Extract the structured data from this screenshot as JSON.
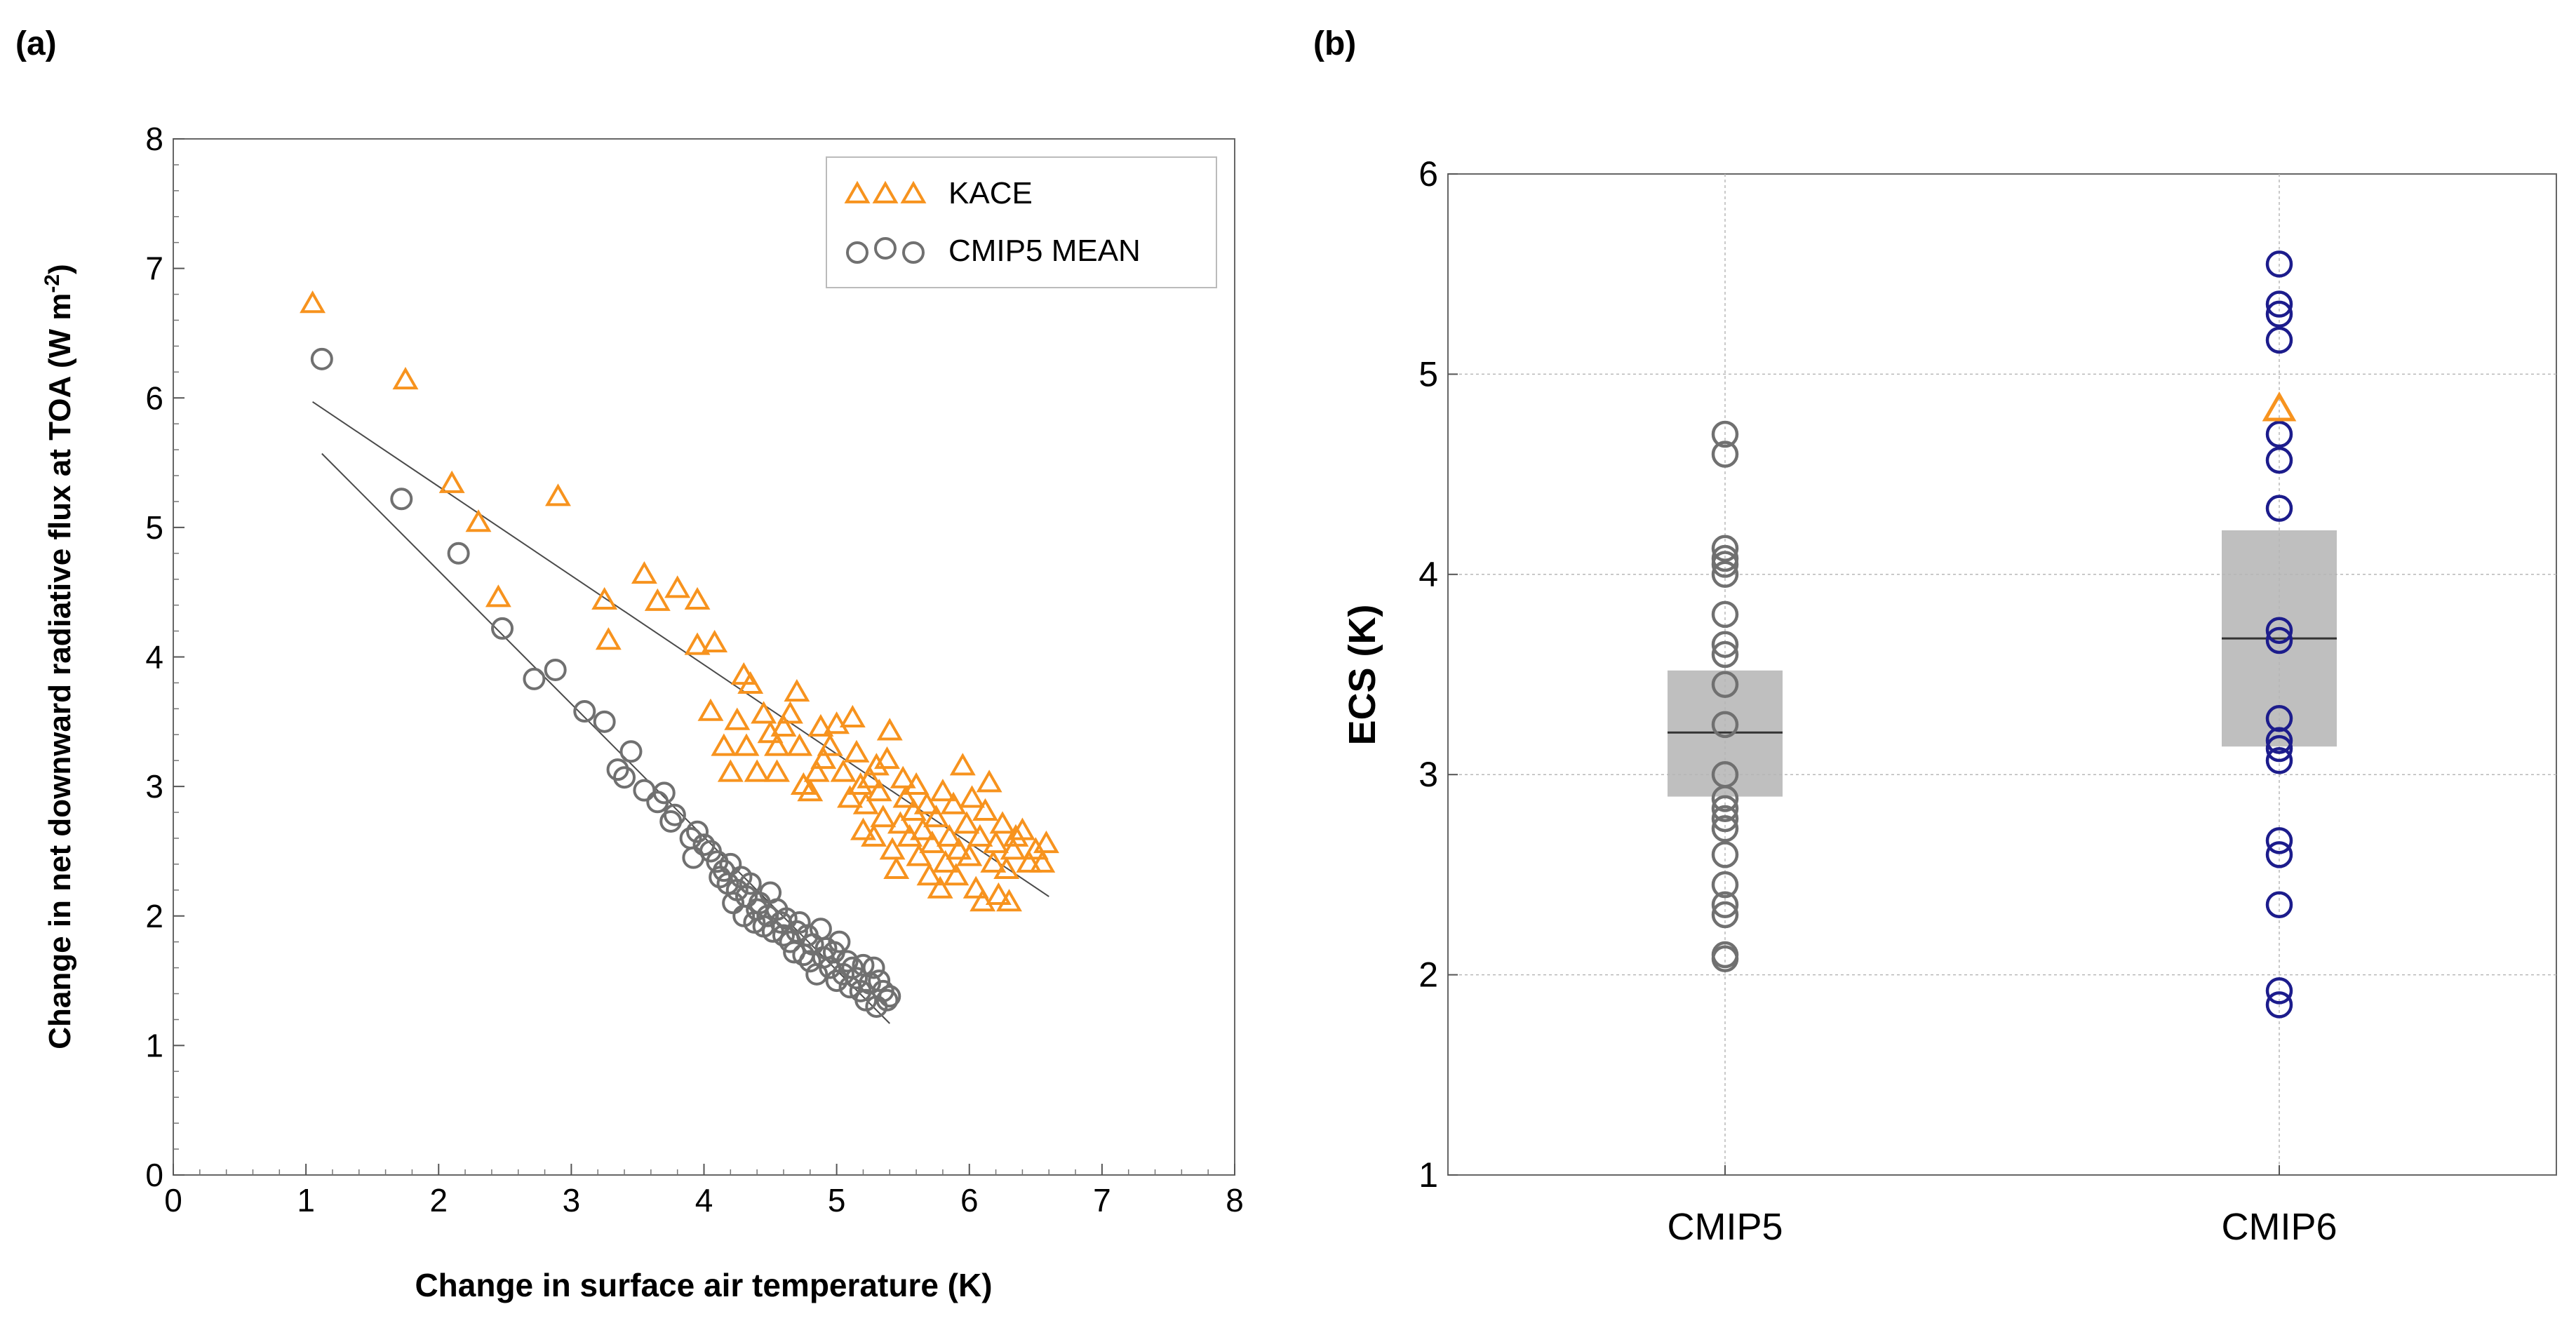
{
  "panels": {
    "a": {
      "label": "(a)"
    },
    "b": {
      "label": "(b)"
    }
  },
  "chart_data": [
    {
      "type": "scatter",
      "xlabel": "Change in surface air temperature (K)",
      "ylabel": "Change in net downward radiative flux at TOA (W m",
      "ylabel_sup": "-2",
      "ylabel_end": ")",
      "xlim": [
        0,
        8
      ],
      "ylim": [
        0,
        8
      ],
      "xticks": [
        "0",
        "1",
        "2",
        "3",
        "4",
        "5",
        "6",
        "7",
        "8"
      ],
      "yticks": [
        "0",
        "1",
        "2",
        "3",
        "4",
        "5",
        "6",
        "7",
        "8"
      ],
      "grid": false,
      "legend_placement": "top-right",
      "series": [
        {
          "name": "KACE",
          "marker": "triangle",
          "color": "#f7931e",
          "fit": [
            [
              1.05,
              5.97
            ],
            [
              6.6,
              2.15
            ]
          ],
          "points": [
            [
              1.05,
              6.72
            ],
            [
              1.75,
              6.13
            ],
            [
              2.1,
              5.33
            ],
            [
              2.3,
              5.03
            ],
            [
              2.45,
              4.45
            ],
            [
              2.9,
              5.23
            ],
            [
              3.25,
              4.43
            ],
            [
              3.28,
              4.12
            ],
            [
              3.55,
              4.63
            ],
            [
              3.65,
              4.42
            ],
            [
              3.8,
              4.52
            ],
            [
              3.95,
              4.43
            ],
            [
              3.95,
              4.08
            ],
            [
              4.08,
              4.1
            ],
            [
              4.05,
              3.57
            ],
            [
              4.15,
              3.3
            ],
            [
              4.2,
              3.1
            ],
            [
              4.25,
              3.5
            ],
            [
              4.3,
              3.85
            ],
            [
              4.32,
              3.3
            ],
            [
              4.35,
              3.78
            ],
            [
              4.4,
              3.1
            ],
            [
              4.45,
              3.55
            ],
            [
              4.5,
              3.4
            ],
            [
              4.55,
              3.3
            ],
            [
              4.55,
              3.1
            ],
            [
              4.6,
              3.45
            ],
            [
              4.65,
              3.55
            ],
            [
              4.7,
              3.72
            ],
            [
              4.72,
              3.3
            ],
            [
              4.75,
              3.0
            ],
            [
              4.8,
              2.95
            ],
            [
              4.85,
              3.1
            ],
            [
              4.88,
              3.45
            ],
            [
              4.9,
              3.2
            ],
            [
              4.95,
              3.3
            ],
            [
              5.0,
              3.47
            ],
            [
              5.05,
              3.1
            ],
            [
              5.1,
              2.9
            ],
            [
              5.12,
              3.52
            ],
            [
              5.15,
              3.25
            ],
            [
              5.18,
              3.0
            ],
            [
              5.2,
              2.65
            ],
            [
              5.22,
              2.85
            ],
            [
              5.25,
              3.05
            ],
            [
              5.28,
              2.6
            ],
            [
              5.3,
              3.15
            ],
            [
              5.32,
              2.95
            ],
            [
              5.35,
              2.75
            ],
            [
              5.38,
              3.2
            ],
            [
              5.4,
              3.42
            ],
            [
              5.42,
              2.5
            ],
            [
              5.45,
              2.35
            ],
            [
              5.48,
              2.7
            ],
            [
              5.5,
              3.05
            ],
            [
              5.52,
              2.9
            ],
            [
              5.55,
              2.6
            ],
            [
              5.58,
              2.8
            ],
            [
              5.6,
              3.0
            ],
            [
              5.62,
              2.45
            ],
            [
              5.65,
              2.65
            ],
            [
              5.68,
              2.85
            ],
            [
              5.7,
              2.3
            ],
            [
              5.72,
              2.55
            ],
            [
              5.75,
              2.75
            ],
            [
              5.78,
              2.2
            ],
            [
              5.8,
              2.95
            ],
            [
              5.82,
              2.4
            ],
            [
              5.85,
              2.6
            ],
            [
              5.88,
              2.85
            ],
            [
              5.9,
              2.3
            ],
            [
              5.92,
              2.5
            ],
            [
              5.95,
              3.15
            ],
            [
              5.98,
              2.7
            ],
            [
              6.0,
              2.45
            ],
            [
              6.02,
              2.9
            ],
            [
              6.05,
              2.2
            ],
            [
              6.08,
              2.6
            ],
            [
              6.1,
              2.1
            ],
            [
              6.12,
              2.8
            ],
            [
              6.15,
              3.02
            ],
            [
              6.18,
              2.4
            ],
            [
              6.2,
              2.55
            ],
            [
              6.22,
              2.15
            ],
            [
              6.25,
              2.7
            ],
            [
              6.28,
              2.35
            ],
            [
              6.3,
              2.1
            ],
            [
              6.33,
              2.5
            ],
            [
              6.35,
              2.6
            ],
            [
              6.4,
              2.65
            ],
            [
              6.45,
              2.4
            ],
            [
              6.5,
              2.5
            ],
            [
              6.55,
              2.4
            ],
            [
              6.58,
              2.55
            ]
          ]
        },
        {
          "name": "CMIP5 MEAN",
          "marker": "circle",
          "color": "#707070",
          "fit": [
            [
              1.12,
              5.57
            ],
            [
              5.4,
              1.17
            ]
          ],
          "points": [
            [
              1.12,
              6.3
            ],
            [
              1.72,
              5.22
            ],
            [
              2.15,
              4.8
            ],
            [
              2.48,
              4.22
            ],
            [
              2.72,
              3.83
            ],
            [
              2.88,
              3.9
            ],
            [
              3.1,
              3.58
            ],
            [
              3.25,
              3.5
            ],
            [
              3.35,
              3.13
            ],
            [
              3.4,
              3.07
            ],
            [
              3.45,
              3.27
            ],
            [
              3.55,
              2.97
            ],
            [
              3.65,
              2.88
            ],
            [
              3.7,
              2.95
            ],
            [
              3.75,
              2.73
            ],
            [
              3.78,
              2.78
            ],
            [
              3.9,
              2.6
            ],
            [
              3.92,
              2.45
            ],
            [
              3.95,
              2.65
            ],
            [
              4.0,
              2.55
            ],
            [
              4.05,
              2.5
            ],
            [
              4.1,
              2.42
            ],
            [
              4.12,
              2.3
            ],
            [
              4.15,
              2.35
            ],
            [
              4.18,
              2.25
            ],
            [
              4.2,
              2.4
            ],
            [
              4.22,
              2.1
            ],
            [
              4.25,
              2.2
            ],
            [
              4.28,
              2.3
            ],
            [
              4.3,
              2.0
            ],
            [
              4.32,
              2.15
            ],
            [
              4.35,
              2.25
            ],
            [
              4.38,
              1.95
            ],
            [
              4.4,
              2.05
            ],
            [
              4.42,
              2.1
            ],
            [
              4.45,
              1.92
            ],
            [
              4.48,
              2.0
            ],
            [
              4.5,
              2.18
            ],
            [
              4.52,
              1.88
            ],
            [
              4.55,
              2.05
            ],
            [
              4.58,
              1.95
            ],
            [
              4.6,
              1.85
            ],
            [
              4.62,
              1.98
            ],
            [
              4.65,
              1.8
            ],
            [
              4.68,
              1.72
            ],
            [
              4.7,
              1.88
            ],
            [
              4.72,
              1.95
            ],
            [
              4.75,
              1.7
            ],
            [
              4.78,
              1.85
            ],
            [
              4.8,
              1.65
            ],
            [
              4.82,
              1.78
            ],
            [
              4.85,
              1.55
            ],
            [
              4.88,
              1.9
            ],
            [
              4.9,
              1.68
            ],
            [
              4.92,
              1.75
            ],
            [
              4.95,
              1.6
            ],
            [
              4.98,
              1.72
            ],
            [
              5.0,
              1.5
            ],
            [
              5.02,
              1.8
            ],
            [
              5.05,
              1.55
            ],
            [
              5.08,
              1.65
            ],
            [
              5.1,
              1.45
            ],
            [
              5.12,
              1.6
            ],
            [
              5.15,
              1.52
            ],
            [
              5.18,
              1.42
            ],
            [
              5.2,
              1.62
            ],
            [
              5.22,
              1.35
            ],
            [
              5.25,
              1.48
            ],
            [
              5.28,
              1.6
            ],
            [
              5.3,
              1.3
            ],
            [
              5.32,
              1.5
            ],
            [
              5.35,
              1.42
            ],
            [
              5.38,
              1.35
            ],
            [
              5.4,
              1.38
            ]
          ]
        }
      ]
    },
    {
      "type": "box",
      "ylabel": "ECS (K)",
      "categories": [
        "CMIP5",
        "CMIP6"
      ],
      "ylim": [
        1,
        6
      ],
      "yticks": [
        "1",
        "2",
        "3",
        "4",
        "5",
        "6"
      ],
      "grid": true,
      "boxes": [
        {
          "category": "CMIP5",
          "q1": 2.89,
          "median": 3.21,
          "q3": 3.52,
          "marker": "circle",
          "color": "#707070",
          "values": [
            4.7,
            4.6,
            4.13,
            4.08,
            4.05,
            4.0,
            3.8,
            3.65,
            3.6,
            3.45,
            3.25,
            3.0,
            2.88,
            2.83,
            2.78,
            2.73,
            2.6,
            2.45,
            2.35,
            2.3,
            2.1,
            2.08
          ]
        },
        {
          "category": "CMIP6",
          "q1": 3.14,
          "median": 3.68,
          "q3": 4.22,
          "marker": "circle",
          "color": "#1c1c8c",
          "values": [
            5.55,
            5.35,
            5.3,
            5.17,
            4.7,
            4.57,
            4.33,
            3.72,
            3.67,
            3.28,
            3.17,
            3.13,
            3.07,
            2.67,
            2.6,
            2.35,
            1.92,
            1.85
          ]
        }
      ],
      "highlight": {
        "name": "KACE",
        "category": "CMIP6",
        "value": 4.82,
        "marker": "triangle",
        "color": "#f7931e"
      }
    }
  ]
}
